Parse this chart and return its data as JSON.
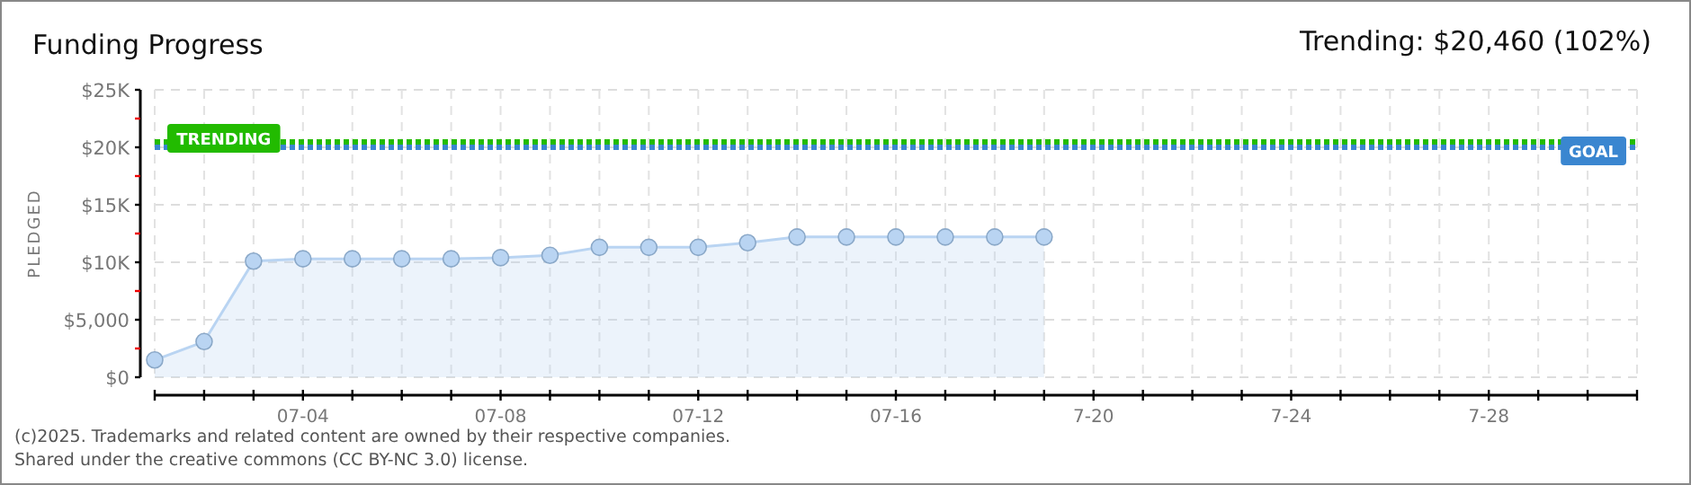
{
  "chart_data": {
    "type": "area",
    "title": "Funding Progress",
    "subtitle": "Trending: $20,460 (102%)",
    "ylabel": "PLEDGED",
    "x": [
      "--07-01",
      "--07-02",
      "--07-03",
      "--07-04",
      "--07-05",
      "--07-06",
      "--07-07",
      "--07-08",
      "--07-09",
      "--07-10",
      "--07-11",
      "--07-12",
      "--07-13",
      "--07-14",
      "--07-15",
      "--07-16",
      "--07-17",
      "--07-18",
      "--07-19"
    ],
    "series": [
      {
        "color": "#b9d4f2",
        "values": [
          1500,
          3100,
          10100,
          10300,
          10300,
          10300,
          10300,
          10400,
          10600,
          11300,
          11300,
          11300,
          11700,
          12200,
          12200,
          12200,
          12200,
          12200,
          12200
        ]
      }
    ],
    "xlim": [
      "--07-01",
      "--07-31"
    ],
    "xticks": [
      {
        "value": "--07-01",
        "label": null
      },
      {
        "value": "--07-02",
        "label": null
      },
      {
        "value": "--07-03",
        "label": null
      },
      {
        "value": "--07-04",
        "label": "07-04"
      },
      {
        "value": "--07-05",
        "label": null
      },
      {
        "value": "--07-06",
        "label": null
      },
      {
        "value": "--07-07",
        "label": null
      },
      {
        "value": "--07-08",
        "label": "07-08"
      },
      {
        "value": "--07-09",
        "label": null
      },
      {
        "value": "--07-10",
        "label": null
      },
      {
        "value": "--07-11",
        "label": null
      },
      {
        "value": "--07-12",
        "label": "07-12"
      },
      {
        "value": "--07-13",
        "label": null
      },
      {
        "value": "--07-14",
        "label": null
      },
      {
        "value": "--07-15",
        "label": null
      },
      {
        "value": "--07-16",
        "label": "07-16"
      },
      {
        "value": "--07-17",
        "label": null
      },
      {
        "value": "--07-18",
        "label": null
      },
      {
        "value": "--07-19",
        "label": null
      },
      {
        "value": "--07-20",
        "label": "7-20"
      },
      {
        "value": "--07-21",
        "label": null
      },
      {
        "value": "--07-22",
        "label": null
      },
      {
        "value": "--07-23",
        "label": null
      },
      {
        "value": "--07-24",
        "label": "7-24"
      },
      {
        "value": "--07-25",
        "label": null
      },
      {
        "value": "--07-26",
        "label": null
      },
      {
        "value": "--07-27",
        "label": null
      },
      {
        "value": "--07-28",
        "label": "7-28"
      },
      {
        "value": "--07-29",
        "label": null
      },
      {
        "value": "--07-30",
        "label": null
      },
      {
        "value": "--07-31",
        "label": null
      }
    ],
    "ylim": [
      0,
      25000
    ],
    "yticks": [
      {
        "value": 0,
        "label": "$0"
      },
      {
        "value": 2500,
        "label": null
      },
      {
        "value": 5000,
        "label": "$5,000"
      },
      {
        "value": 7500,
        "label": null
      },
      {
        "value": 10000,
        "label": "$10K"
      },
      {
        "value": 12500,
        "label": null
      },
      {
        "value": 15000,
        "label": "$15K"
      },
      {
        "value": 17500,
        "label": null
      },
      {
        "value": 20000,
        "label": "$20K"
      },
      {
        "value": 22500,
        "label": null
      },
      {
        "value": 25000,
        "label": "$25K"
      }
    ],
    "grid": true,
    "marker": "circle",
    "ref_lines": [
      {
        "axis": "y",
        "value": 20460,
        "label": "TRENDING",
        "color": "#22bb00",
        "line_style": "dotted"
      },
      {
        "axis": "y",
        "value": 20000,
        "label": "GOAL",
        "color": "#3a86d0",
        "line_style": "dotted"
      }
    ],
    "annotations": [
      "(c)2025. Trademarks and related content are owned by their respective companies.",
      "Shared under the creative commons (CC BY-NC 3.0) license."
    ]
  }
}
